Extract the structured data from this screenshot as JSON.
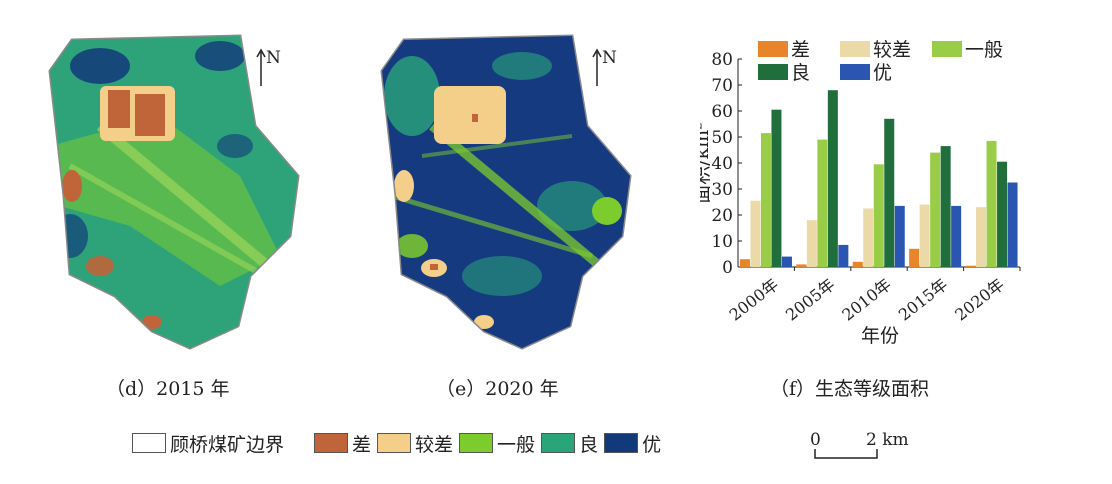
{
  "maps": [
    {
      "id": "d",
      "caption": "（d）2015 年",
      "north": "N"
    },
    {
      "id": "e",
      "caption": "（e）2020 年",
      "north": "N"
    }
  ],
  "chart_caption": "（f）生态等级面积",
  "legend": {
    "boundary": "顾桥煤矿边界",
    "items": [
      {
        "label": "差",
        "color": "#c0643a"
      },
      {
        "label": "较差",
        "color": "#f3cf8a"
      },
      {
        "label": "一般",
        "color": "#7ccc2e"
      },
      {
        "label": "良",
        "color": "#2aa57a"
      },
      {
        "label": "优",
        "color": "#123a7a"
      }
    ]
  },
  "scale": {
    "zero": "0",
    "value": "2 km"
  },
  "map_colors": {
    "fill_2015": "#2ea37a",
    "fill_2020": "#153a80",
    "outline": "#8a8a8a",
    "poor": "#c0643a",
    "fair": "#f3cf8a",
    "medium": "#7ccc2e",
    "good": "#2aa57a",
    "excellent": "#123a7a"
  },
  "chart_data": {
    "type": "bar",
    "categories": [
      "2000年",
      "2005年",
      "2010年",
      "2015年",
      "2020年"
    ],
    "series": [
      {
        "name": "差",
        "color": "#e8842a",
        "values": [
          3,
          1,
          2,
          7,
          0.5
        ]
      },
      {
        "name": "较差",
        "color": "#ecd9a8",
        "values": [
          25.5,
          18,
          22.5,
          24,
          23
        ]
      },
      {
        "name": "一般",
        "color": "#9acd47",
        "values": [
          51.5,
          49,
          39.5,
          44,
          48.5
        ]
      },
      {
        "name": "良",
        "color": "#1f6e3c",
        "values": [
          60.5,
          68,
          57,
          46.5,
          40.5
        ]
      },
      {
        "name": "优",
        "color": "#2a55b0",
        "values": [
          4,
          8.5,
          23.5,
          23.5,
          32.5
        ]
      }
    ],
    "xlabel": "年份",
    "ylabel": "面积/km²",
    "ylim": [
      0,
      80
    ],
    "yticks": [
      0,
      10,
      20,
      30,
      40,
      50,
      60,
      70,
      80
    ],
    "legend_position": "top",
    "grid": false
  }
}
